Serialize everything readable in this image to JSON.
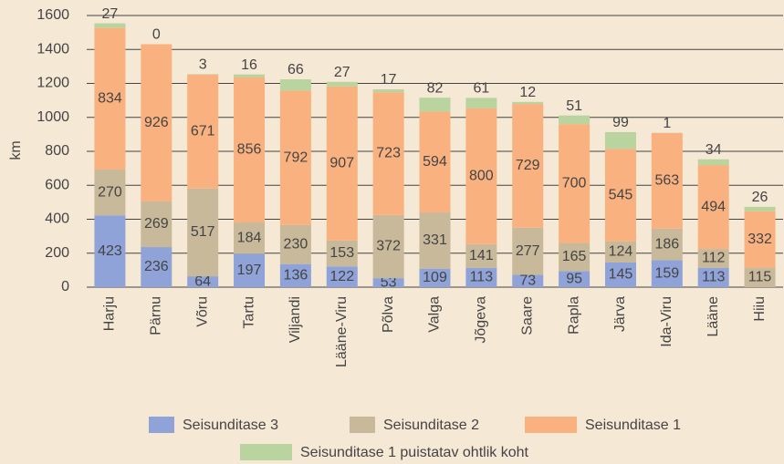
{
  "chart_data": {
    "type": "stacked_bar",
    "y_label": "km",
    "categories": [
      "Harju",
      "Pärnu",
      "Võru",
      "Tartu",
      "Viljandi",
      "Lääne-Viru",
      "Põlva",
      "Valga",
      "Jõgeva",
      "Saare",
      "Rapla",
      "Järva",
      "Ida-Viru",
      "Lääne",
      "Hiiu"
    ],
    "series": [
      {
        "name": "Seisunditase 3",
        "color": "#8fa3d9",
        "values": [
          423,
          236,
          64,
          197,
          136,
          122,
          53,
          109,
          113,
          73,
          95,
          145,
          159,
          113,
          null
        ]
      },
      {
        "name": "Seisunditase 2",
        "color": "#c8b99b",
        "values": [
          270,
          269,
          517,
          184,
          230,
          153,
          372,
          331,
          141,
          277,
          165,
          124,
          186,
          112,
          115
        ]
      },
      {
        "name": "Seisunditase 1",
        "color": "#f9b27f",
        "values": [
          834,
          926,
          671,
          856,
          792,
          907,
          723,
          594,
          800,
          729,
          700,
          545,
          563,
          494,
          332
        ]
      },
      {
        "name": "Seisunditase 1 puistatav ohtlik koht",
        "color": "#b9d49e",
        "values": [
          27,
          0,
          3,
          16,
          66,
          27,
          17,
          82,
          61,
          12,
          51,
          99,
          1,
          34,
          26
        ]
      }
    ],
    "ylim": [
      0,
      1600
    ],
    "yticks": [
      0,
      200,
      400,
      600,
      800,
      1000,
      1200,
      1400,
      1600
    ],
    "grid": true
  }
}
